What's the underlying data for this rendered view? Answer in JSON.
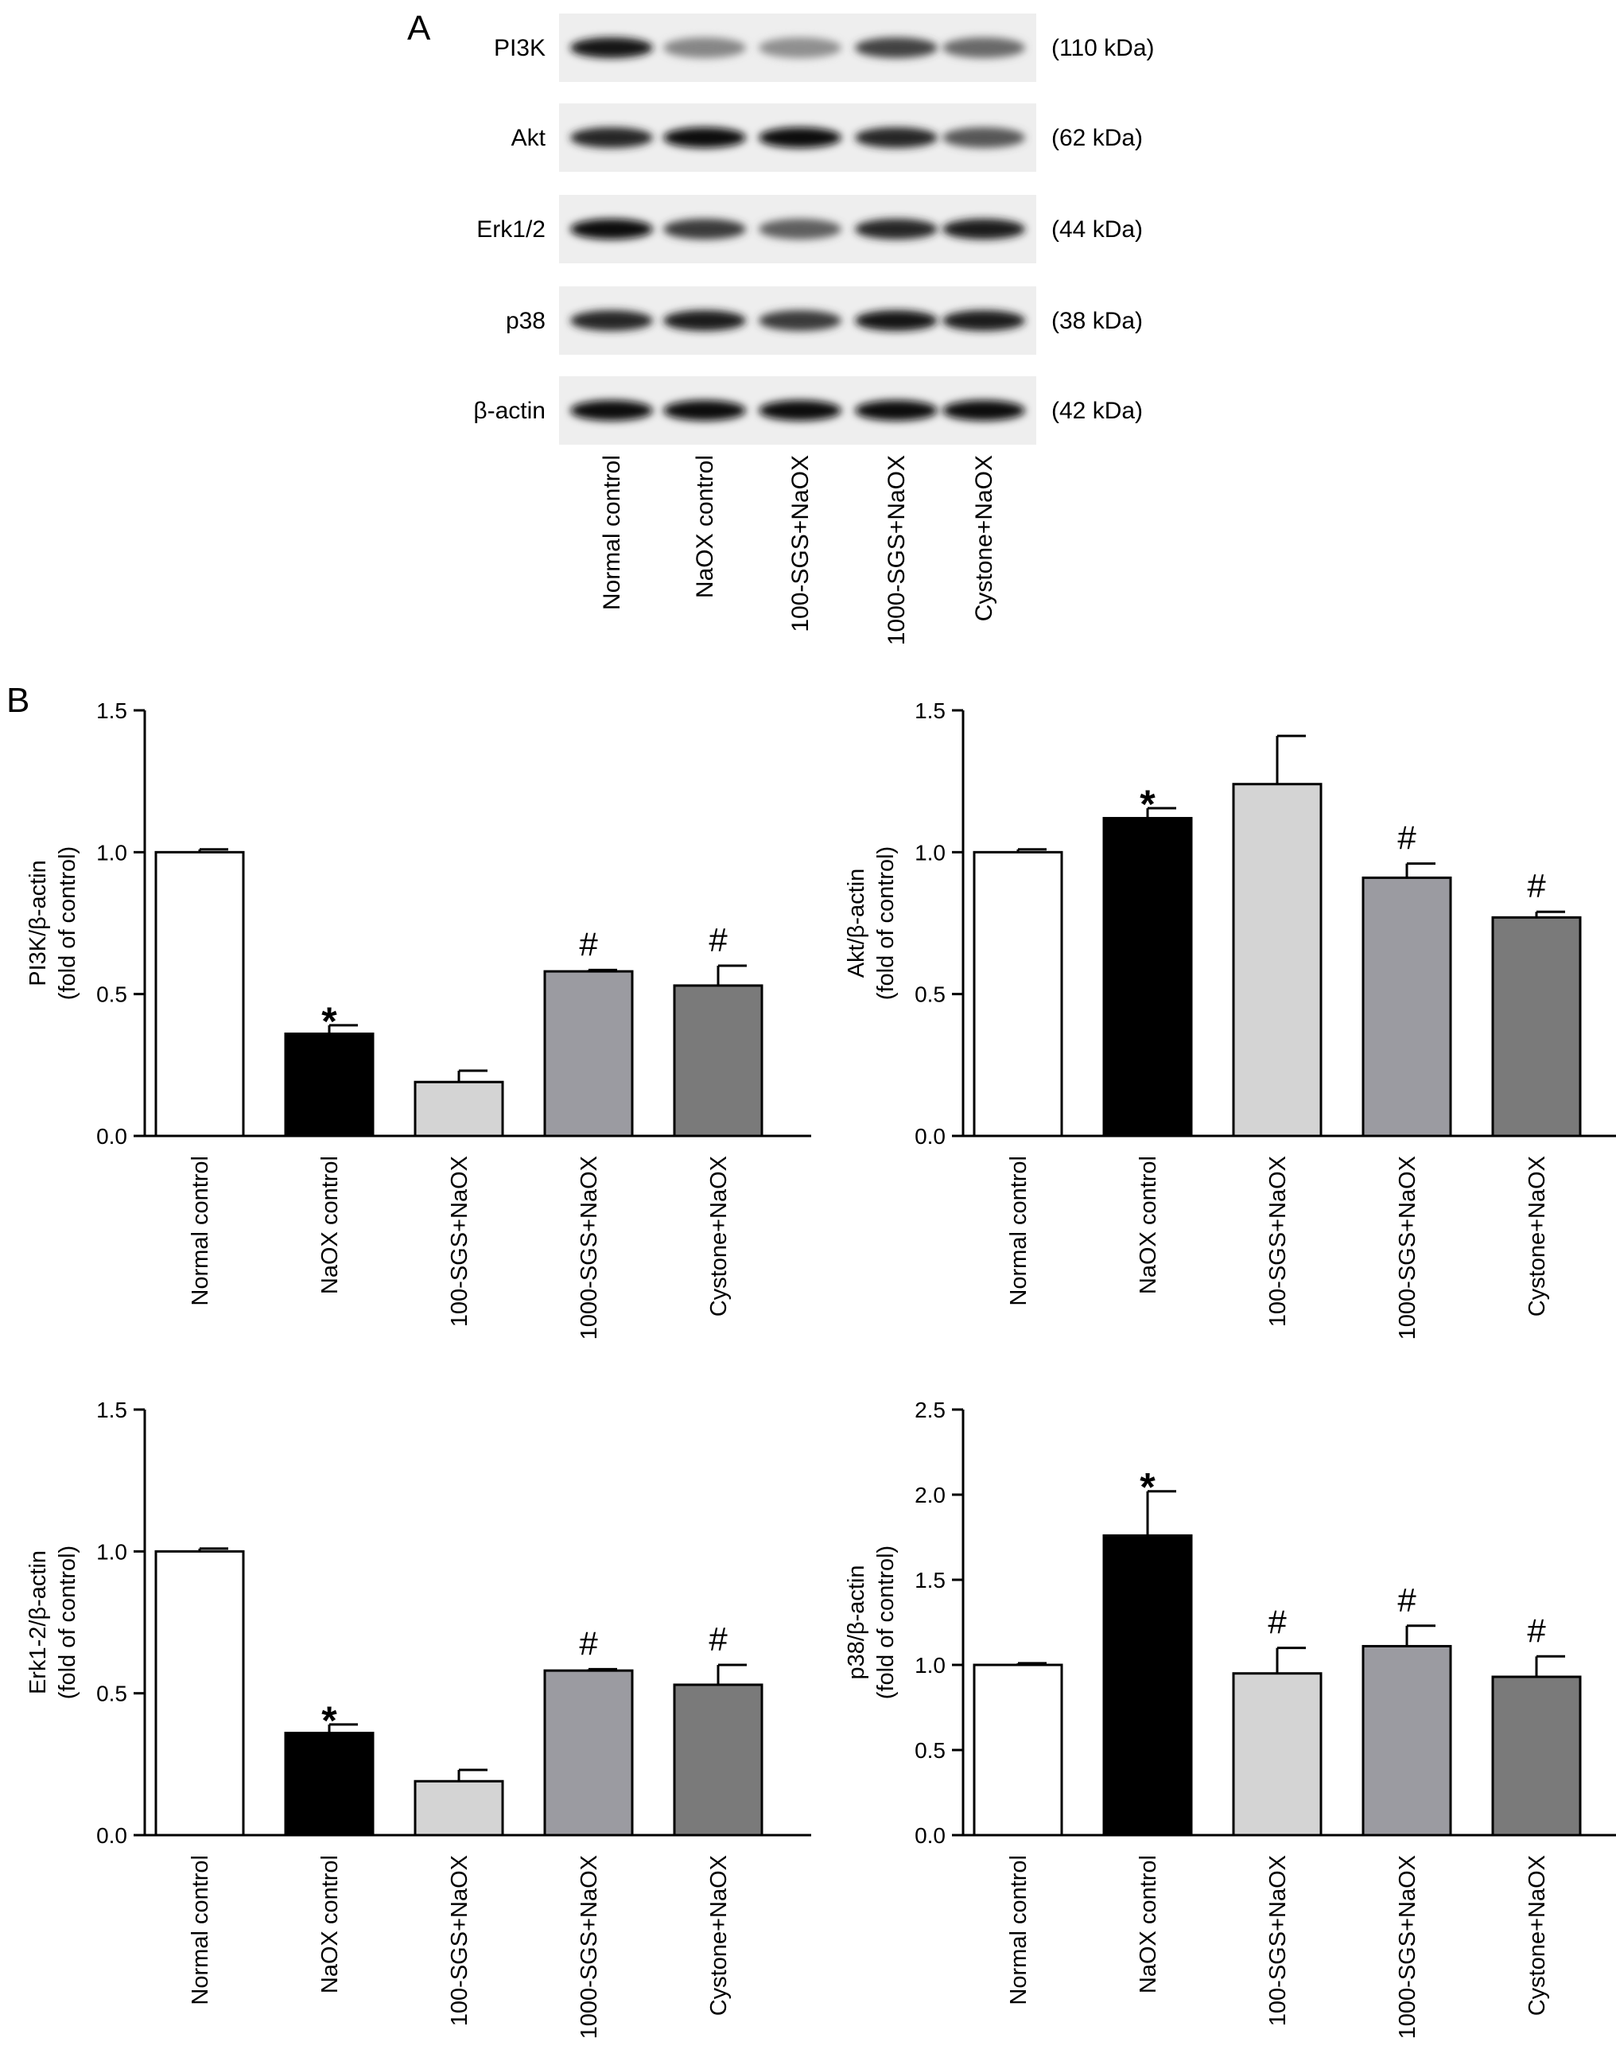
{
  "figure": {
    "panel_a_label": "A",
    "panel_b_label": "B"
  },
  "blot": {
    "lanes": [
      "Normal control",
      "NaOX control",
      "100-SGS+NaOX",
      "1000-SGS+NaOX",
      "Cystone+NaOX"
    ],
    "rows": [
      {
        "protein": "PI3K",
        "size": "(110 kDa)",
        "band_intensity": [
          0.95,
          0.35,
          0.3,
          0.7,
          0.5
        ]
      },
      {
        "protein": "Akt",
        "size": "(62 kDa)",
        "band_intensity": [
          0.85,
          1.0,
          1.0,
          0.85,
          0.6
        ]
      },
      {
        "protein": "Erk1/2",
        "size": "(44 kDa)",
        "band_intensity": [
          1.0,
          0.75,
          0.55,
          0.85,
          0.9
        ]
      },
      {
        "protein": "p38",
        "size": "(38 kDa)",
        "band_intensity": [
          0.85,
          0.9,
          0.75,
          0.95,
          0.9
        ]
      },
      {
        "protein": "β-actin",
        "size": "(42 kDa)",
        "band_intensity": [
          1.0,
          1.0,
          1.0,
          1.0,
          1.0
        ]
      }
    ]
  },
  "chart_data": [
    {
      "type": "bar",
      "categories": [
        "Normal control",
        "NaOX control",
        "100-SGS+NaOX",
        "1000-SGS+NaOX",
        "Cystone+NaOX"
      ],
      "values": [
        1.0,
        0.36,
        0.19,
        0.58,
        0.53
      ],
      "errors": [
        0.01,
        0.03,
        0.04,
        0.005,
        0.07
      ],
      "markers": [
        "",
        "*",
        "",
        "#",
        "#"
      ],
      "bar_colors": [
        "#ffffff",
        "#000000",
        "#d4d4d4",
        "#9b9ba1",
        "#7a7a7a"
      ],
      "ylabel_lines": [
        "PI3K/β-actin",
        "(fold of control)"
      ],
      "ylim": [
        0,
        1.5
      ],
      "yticks": [
        "0.0",
        "0.5",
        "1.0",
        "1.5"
      ]
    },
    {
      "type": "bar",
      "categories": [
        "Normal control",
        "NaOX control",
        "100-SGS+NaOX",
        "1000-SGS+NaOX",
        "Cystone+NaOX"
      ],
      "values": [
        1.0,
        1.12,
        1.24,
        0.91,
        0.77
      ],
      "errors": [
        0.01,
        0.035,
        0.17,
        0.05,
        0.02
      ],
      "markers": [
        "",
        "*",
        "",
        "#",
        "#"
      ],
      "bar_colors": [
        "#ffffff",
        "#000000",
        "#d4d4d4",
        "#9b9ba1",
        "#7a7a7a"
      ],
      "ylabel_lines": [
        "Akt/β-actin",
        "(fold of control)"
      ],
      "ylim": [
        0,
        1.5
      ],
      "yticks": [
        "0.0",
        "0.5",
        "1.0",
        "1.5"
      ]
    },
    {
      "type": "bar",
      "categories": [
        "Normal control",
        "NaOX control",
        "100-SGS+NaOX",
        "1000-SGS+NaOX",
        "Cystone+NaOX"
      ],
      "values": [
        1.0,
        0.36,
        0.19,
        0.58,
        0.53
      ],
      "errors": [
        0.01,
        0.03,
        0.04,
        0.005,
        0.07
      ],
      "markers": [
        "",
        "*",
        "",
        "#",
        "#"
      ],
      "bar_colors": [
        "#ffffff",
        "#000000",
        "#d4d4d4",
        "#9b9ba1",
        "#7a7a7a"
      ],
      "ylabel_lines": [
        "Erk1-2/β-actin",
        "(fold of control)"
      ],
      "ylim": [
        0,
        1.5
      ],
      "yticks": [
        "0.0",
        "0.5",
        "1.0",
        "1.5"
      ]
    },
    {
      "type": "bar",
      "categories": [
        "Normal control",
        "NaOX control",
        "100-SGS+NaOX",
        "1000-SGS+NaOX",
        "Cystone+NaOX"
      ],
      "values": [
        1.0,
        1.76,
        0.95,
        1.11,
        0.93
      ],
      "errors": [
        0.01,
        0.26,
        0.15,
        0.12,
        0.12
      ],
      "markers": [
        "",
        "*",
        "#",
        "#",
        "#"
      ],
      "bar_colors": [
        "#ffffff",
        "#000000",
        "#d4d4d4",
        "#9b9ba1",
        "#7a7a7a"
      ],
      "ylabel_lines": [
        "p38/β-actin",
        "(fold of control)"
      ],
      "ylim": [
        0,
        2.5
      ],
      "yticks": [
        "0.0",
        "0.5",
        "1.0",
        "1.5",
        "2.0",
        "2.5"
      ]
    }
  ]
}
